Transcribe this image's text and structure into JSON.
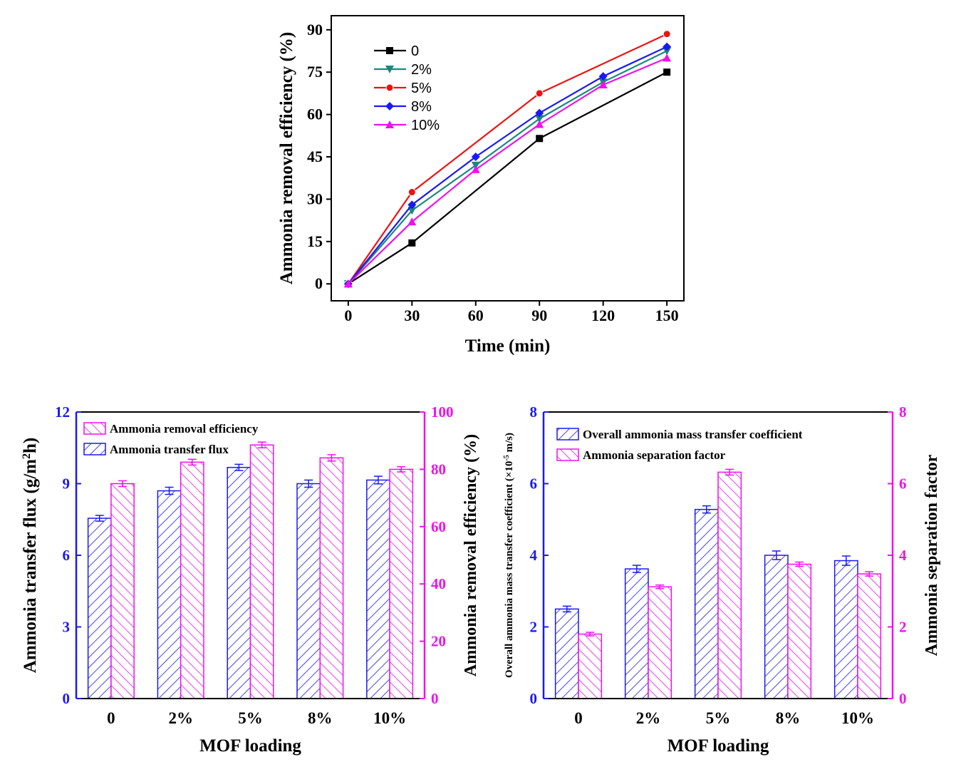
{
  "colors": {
    "black": "#000000",
    "teal": "#1a8a7a",
    "red": "#ee1111",
    "blue": "#1a1aee",
    "magenta": "#ee11ee",
    "left_axis": "#1a1aee",
    "right_axis": "#ee11ee"
  },
  "chart_data": [
    {
      "type": "line",
      "xlabel": "Time (min)",
      "ylabel": "Ammonia removal efficiency (%)",
      "x": [
        0,
        30,
        60,
        90,
        120,
        150
      ],
      "xlim": [
        -8,
        158
      ],
      "ylim": [
        -6,
        95
      ],
      "xticks": [
        0,
        30,
        60,
        90,
        120,
        150
      ],
      "yticks": [
        0,
        15,
        30,
        45,
        60,
        75,
        90
      ],
      "legend_position": "top-left",
      "series": [
        {
          "name": "0",
          "color": "#000000",
          "marker": "square",
          "points": [
            [
              0,
              0
            ],
            [
              30,
              14.5
            ],
            [
              90,
              51.5
            ],
            [
              150,
              75
            ]
          ]
        },
        {
          "name": "2%",
          "color": "#1a8a7a",
          "marker": "triangle-down",
          "points": [
            [
              0,
              0
            ],
            [
              30,
              26
            ],
            [
              60,
              42
            ],
            [
              90,
              58.5
            ],
            [
              120,
              71.5
            ],
            [
              150,
              82.5
            ]
          ]
        },
        {
          "name": "5%",
          "color": "#ee1111",
          "marker": "circle",
          "points": [
            [
              0,
              0
            ],
            [
              30,
              32.5
            ],
            [
              90,
              67.5
            ],
            [
              150,
              88.5
            ]
          ]
        },
        {
          "name": "8%",
          "color": "#1a1aee",
          "marker": "diamond",
          "points": [
            [
              0,
              0
            ],
            [
              30,
              28
            ],
            [
              60,
              45
            ],
            [
              90,
              60.5
            ],
            [
              120,
              73.5
            ],
            [
              150,
              84
            ]
          ]
        },
        {
          "name": "10%",
          "color": "#ee11ee",
          "marker": "triangle-up",
          "points": [
            [
              0,
              0
            ],
            [
              30,
              22
            ],
            [
              60,
              40.5
            ],
            [
              90,
              56.5
            ],
            [
              120,
              70.5
            ],
            [
              150,
              80
            ]
          ]
        }
      ]
    },
    {
      "type": "bar",
      "xlabel": "MOF loading",
      "ylabel_left": "Ammonia transfer flux (g/m",
      "ylabel_left_sup": "2",
      "ylabel_left_end": "h)",
      "ylabel_right": "Ammonia removal efficiency (%)",
      "categories": [
        "0",
        "2%",
        "5%",
        "8%",
        "10%"
      ],
      "ylim_left": [
        0,
        12
      ],
      "yticks_left": [
        0,
        3,
        6,
        9,
        12
      ],
      "ylim_right": [
        0,
        100
      ],
      "yticks_right": [
        0,
        20,
        40,
        60,
        80,
        100
      ],
      "legend_position": "top-left",
      "series": [
        {
          "name": "Ammonia transfer flux",
          "axis": "left",
          "color": "#1a1aee",
          "hatch": "forward",
          "values": [
            7.55,
            8.7,
            9.68,
            9.0,
            9.15
          ],
          "errors": [
            0.12,
            0.15,
            0.13,
            0.15,
            0.16
          ]
        },
        {
          "name": "Ammonia removal efficiency",
          "axis": "right",
          "color": "#ee11ee",
          "hatch": "backward",
          "values": [
            75,
            82.5,
            88.5,
            84,
            80
          ],
          "errors": [
            1.0,
            1.0,
            1.0,
            1.1,
            0.9
          ]
        }
      ]
    },
    {
      "type": "bar",
      "xlabel": "MOF loading",
      "ylabel_left": "Overall ammonia mass transfer coefficient (×10",
      "ylabel_left_sup": "-5",
      "ylabel_left_end": " m/s)",
      "ylabel_right": "Ammonia separation factor",
      "categories": [
        "0",
        "2%",
        "5%",
        "8%",
        "10%"
      ],
      "ylim_left": [
        0,
        8
      ],
      "yticks_left": [
        0,
        2,
        4,
        6,
        8
      ],
      "ylim_right": [
        0,
        8
      ],
      "yticks_right": [
        0,
        2,
        4,
        6,
        8
      ],
      "legend_position": "top-left",
      "series": [
        {
          "name": "Overall ammonia mass transfer coefficient",
          "axis": "left",
          "color": "#1a1aee",
          "hatch": "forward",
          "values": [
            2.5,
            3.62,
            5.28,
            4.0,
            3.85
          ],
          "errors": [
            0.08,
            0.1,
            0.1,
            0.12,
            0.13
          ]
        },
        {
          "name": "Ammonia separation factor",
          "axis": "right",
          "color": "#ee11ee",
          "hatch": "backward",
          "values": [
            1.8,
            3.12,
            6.32,
            3.75,
            3.48
          ],
          "errors": [
            0.05,
            0.05,
            0.08,
            0.06,
            0.06
          ]
        }
      ]
    }
  ]
}
